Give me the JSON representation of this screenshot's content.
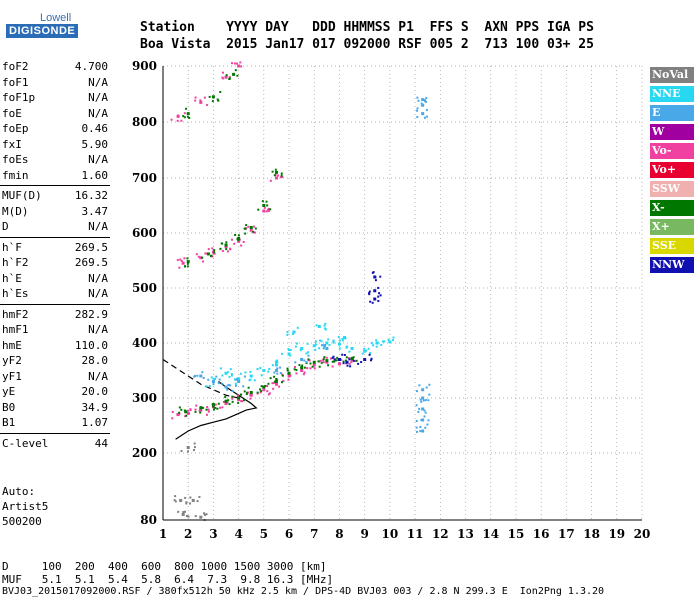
{
  "logo": {
    "top": "Lowell",
    "main": "DIGISONDE"
  },
  "header": {
    "line1": "Station    YYYY DAY   DDD HHMMSS P1  FFS S  AXN PPS IGA PS",
    "line2": "Boa Vista  2015 Jan17 017 092000 RSF 005 2  713 100 03+ 25"
  },
  "params_group1": [
    {
      "name": "foF2",
      "value": "4.700"
    },
    {
      "name": "foF1",
      "value": "N/A"
    },
    {
      "name": "foF1p",
      "value": "N/A"
    },
    {
      "name": "foE",
      "value": "N/A"
    },
    {
      "name": "foEp",
      "value": "0.46"
    },
    {
      "name": "fxI",
      "value": "5.90"
    },
    {
      "name": "foEs",
      "value": "N/A"
    },
    {
      "name": "fmin",
      "value": "1.60"
    }
  ],
  "params_group2": [
    {
      "name": "MUF(D)",
      "value": "16.32"
    },
    {
      "name": "M(D)",
      "value": "3.47"
    },
    {
      "name": "D",
      "value": "N/A"
    }
  ],
  "params_group3": [
    {
      "name": "h`F",
      "value": "269.5"
    },
    {
      "name": "h`F2",
      "value": "269.5"
    },
    {
      "name": "h`E",
      "value": "N/A"
    },
    {
      "name": "h`Es",
      "value": "N/A"
    }
  ],
  "params_group4": [
    {
      "name": "hmF2",
      "value": "282.9"
    },
    {
      "name": "hmF1",
      "value": "N/A"
    },
    {
      "name": "hmE",
      "value": "110.0"
    },
    {
      "name": "yF2",
      "value": "28.0"
    },
    {
      "name": "yF1",
      "value": "N/A"
    },
    {
      "name": "yE",
      "value": "20.0"
    },
    {
      "name": "B0",
      "value": "34.9"
    },
    {
      "name": "B1",
      "value": "1.07"
    }
  ],
  "params_group5": [
    {
      "name": "C-level",
      "value": "44"
    }
  ],
  "auto": {
    "line1": "Auto:",
    "line2": "Artist5",
    "line3": "500200"
  },
  "footer": {
    "line1": "D     100  200  400  600  800 1000 1500 3000 [km]",
    "line2": "MUF   5.1  5.1  5.4  5.8  6.4  7.3  9.8 16.3 [MHz]",
    "line3": "BVJ03_2015017092000.RSF / 380fx512h 50 kHz 2.5 km / DPS-4D BVJ03 003 / 2.8 N 299.3 E  Ion2Png 1.3.20"
  },
  "legend": [
    {
      "label": "NoVal",
      "color": "#808080"
    },
    {
      "label": "NNE",
      "color": "#28d8f0"
    },
    {
      "label": "E",
      "color": "#48a8e8"
    },
    {
      "label": "W",
      "color": "#a000a0"
    },
    {
      "label": "Vo-",
      "color": "#f040a0"
    },
    {
      "label": "Vo+",
      "color": "#e80030"
    },
    {
      "label": "SSW",
      "color": "#f0b0b0"
    },
    {
      "label": "X-",
      "color": "#007800"
    },
    {
      "label": "X+",
      "color": "#78b860"
    },
    {
      "label": "SSE",
      "color": "#d8d800"
    },
    {
      "label": "NNW",
      "color": "#1010b0"
    }
  ],
  "chart_data": {
    "type": "scatter",
    "xlim": [
      1,
      20
    ],
    "ylim": [
      80,
      900
    ],
    "x_ticks": [
      1,
      2,
      3,
      4,
      5,
      6,
      7,
      8,
      9,
      10,
      11,
      12,
      13,
      14,
      15,
      16,
      17,
      18,
      19,
      20
    ],
    "y_ticks": [
      80,
      200,
      300,
      400,
      500,
      600,
      700,
      800,
      900
    ],
    "grid": true,
    "series": [
      {
        "name": "O-trace (Vo-)",
        "color": "#f040a0",
        "points": [
          [
            1.6,
            270
          ],
          [
            2.0,
            272
          ],
          [
            2.5,
            278
          ],
          [
            3.0,
            284
          ],
          [
            3.5,
            290
          ],
          [
            4.0,
            297
          ],
          [
            4.5,
            305
          ],
          [
            5.0,
            315
          ],
          [
            5.5,
            325
          ],
          [
            6.0,
            340
          ],
          [
            6.5,
            350
          ],
          [
            7.0,
            360
          ],
          [
            7.5,
            365
          ],
          [
            8.0,
            362
          ],
          [
            8.5,
            370
          ]
        ]
      },
      {
        "name": "X-trace (X-)",
        "color": "#007800",
        "points": [
          [
            1.9,
            275
          ],
          [
            2.5,
            282
          ],
          [
            3.0,
            288
          ],
          [
            3.5,
            294
          ],
          [
            4.0,
            300
          ],
          [
            4.5,
            310
          ],
          [
            5.0,
            320
          ],
          [
            5.5,
            330
          ],
          [
            6.0,
            345
          ],
          [
            6.5,
            355
          ],
          [
            7.0,
            365
          ],
          [
            7.5,
            368
          ],
          [
            8.0,
            370
          ],
          [
            8.5,
            372
          ]
        ]
      },
      {
        "name": "Spread F (NNE)",
        "color": "#28d8f0",
        "points": [
          [
            4.5,
            340
          ],
          [
            5.0,
            350
          ],
          [
            5.5,
            360
          ],
          [
            6.0,
            380
          ],
          [
            6.5,
            390
          ],
          [
            7.0,
            395
          ],
          [
            7.5,
            400
          ],
          [
            8.0,
            398
          ],
          [
            8.5,
            390
          ],
          [
            9.0,
            385
          ],
          [
            9.5,
            400
          ],
          [
            10.0,
            402
          ],
          [
            6.2,
            420
          ],
          [
            7.2,
            430
          ],
          [
            8.2,
            410
          ],
          [
            3.0,
            330
          ],
          [
            3.5,
            345
          ],
          [
            4.0,
            335
          ]
        ]
      },
      {
        "name": "E (E)",
        "color": "#48a8e8",
        "points": [
          [
            2.5,
            340
          ],
          [
            3.0,
            330
          ],
          [
            3.5,
            320
          ],
          [
            4.0,
            330
          ],
          [
            5.5,
            350
          ],
          [
            6.5,
            370
          ],
          [
            7.5,
            390
          ],
          [
            11.3,
            240
          ],
          [
            11.3,
            260
          ],
          [
            11.3,
            280
          ],
          [
            11.3,
            300
          ],
          [
            11.3,
            315
          ],
          [
            11.3,
            815
          ],
          [
            11.3,
            830
          ],
          [
            11.3,
            840
          ]
        ]
      },
      {
        "name": "Multi-hop (Vo-)",
        "color": "#f040a0",
        "points": [
          [
            1.8,
            545
          ],
          [
            2.5,
            555
          ],
          [
            3.0,
            565
          ],
          [
            3.5,
            575
          ],
          [
            4.0,
            585
          ],
          [
            4.5,
            605
          ],
          [
            5.0,
            640
          ],
          [
            5.5,
            700
          ],
          [
            1.6,
            810
          ],
          [
            2.5,
            835
          ],
          [
            3.5,
            880
          ],
          [
            4.0,
            900
          ]
        ]
      },
      {
        "name": "Multi-hop (X-)",
        "color": "#007800",
        "points": [
          [
            2.0,
            548
          ],
          [
            2.8,
            562
          ],
          [
            3.5,
            578
          ],
          [
            4.0,
            590
          ],
          [
            4.5,
            610
          ],
          [
            5.0,
            650
          ],
          [
            5.5,
            710
          ],
          [
            2.0,
            815
          ],
          [
            3.0,
            845
          ],
          [
            3.8,
            885
          ]
        ]
      },
      {
        "name": "Echo (NNW)",
        "color": "#1010b0",
        "points": [
          [
            8.0,
            370
          ],
          [
            8.3,
            365
          ],
          [
            9.0,
            370
          ],
          [
            9.4,
            480
          ],
          [
            9.4,
            495
          ],
          [
            9.4,
            520
          ]
        ]
      },
      {
        "name": "Low (NoVal)",
        "color": "#808080",
        "points": [
          [
            1.7,
            115
          ],
          [
            2.2,
            115
          ],
          [
            2.0,
            210
          ],
          [
            1.8,
            90
          ],
          [
            2.5,
            85
          ]
        ]
      }
    ],
    "profile_lines": [
      {
        "name": "Profile (solid)",
        "style": "solid",
        "points": [
          [
            1.5,
            225
          ],
          [
            2.0,
            240
          ],
          [
            2.5,
            250
          ],
          [
            3.0,
            256
          ],
          [
            3.5,
            262
          ],
          [
            4.0,
            272
          ],
          [
            4.3,
            278
          ],
          [
            4.7,
            282
          ],
          [
            4.5,
            290
          ],
          [
            4.0,
            305
          ],
          [
            3.5,
            320
          ],
          [
            3.2,
            330
          ]
        ]
      },
      {
        "name": "Profile (dashed)",
        "style": "dashed",
        "points": [
          [
            1.0,
            370
          ],
          [
            1.5,
            355
          ],
          [
            2.0,
            340
          ],
          [
            2.5,
            325
          ],
          [
            3.0,
            315
          ],
          [
            3.5,
            305
          ],
          [
            4.0,
            300
          ]
        ]
      }
    ]
  }
}
